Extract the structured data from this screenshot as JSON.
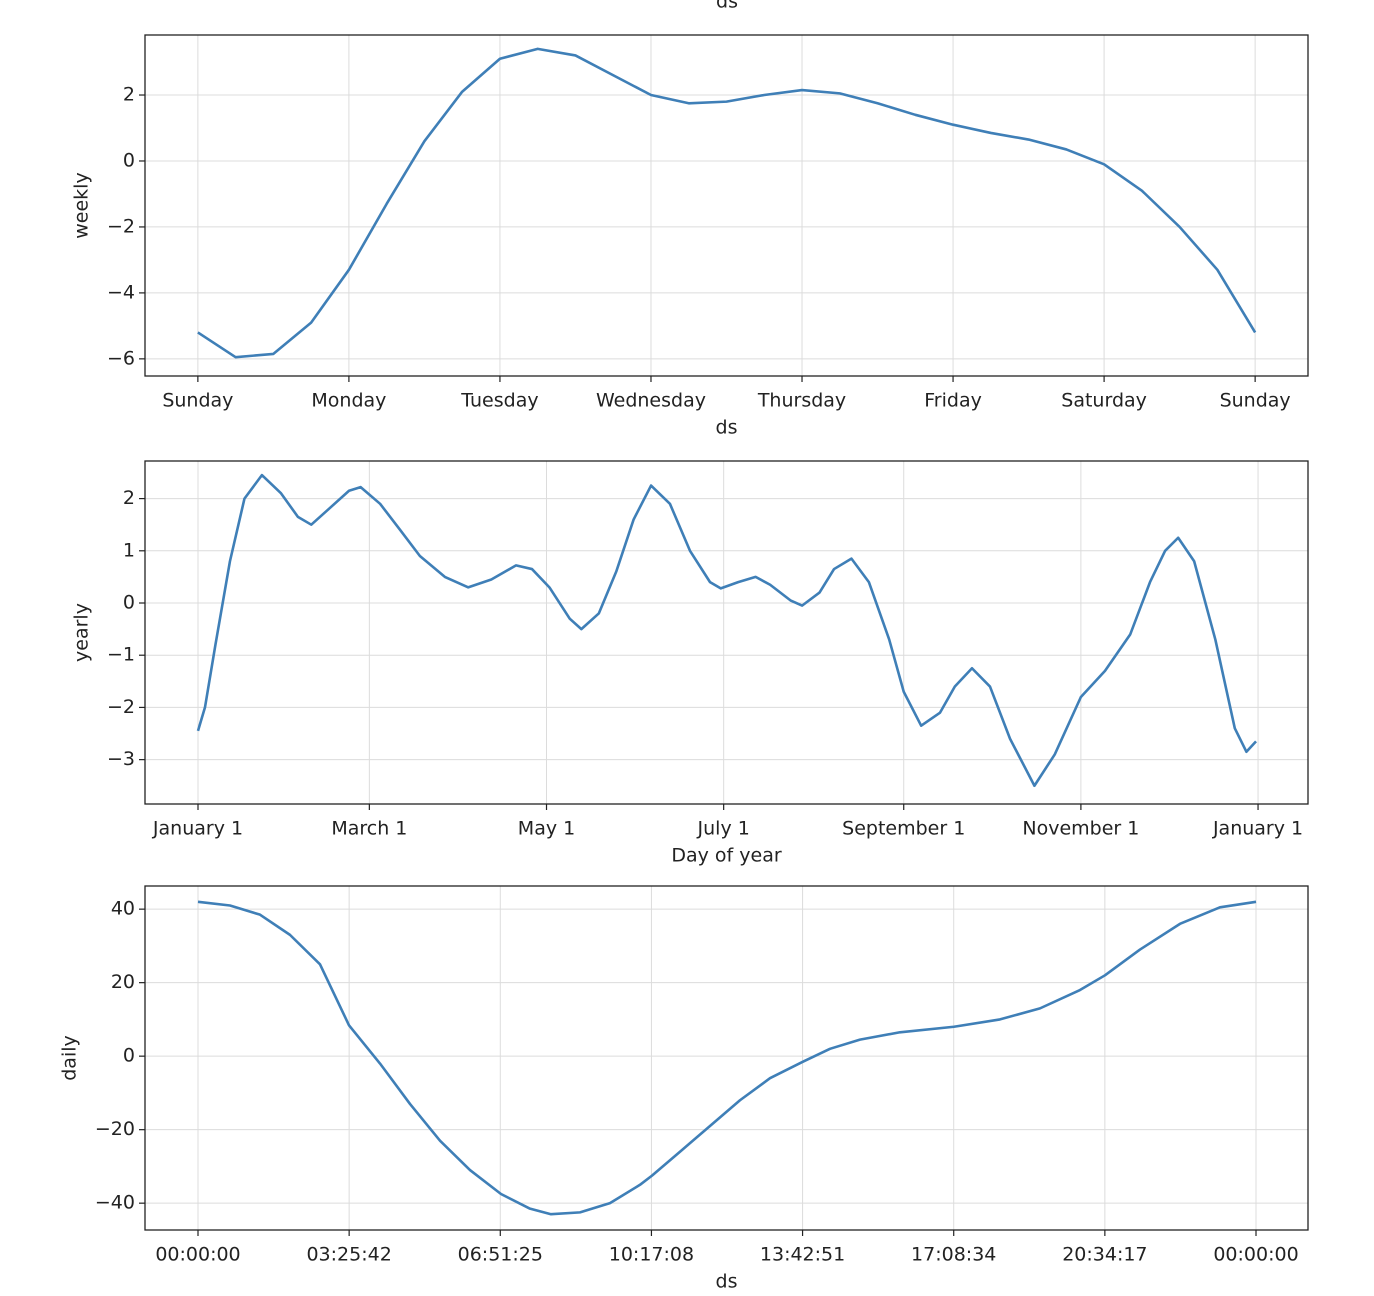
{
  "top_label": "ds",
  "chart_data": [
    {
      "type": "line",
      "ylabel": "weekly",
      "xlabel": "ds",
      "color": "#3f7fb7",
      "grid": true,
      "x": [
        0,
        0.25,
        0.5,
        0.75,
        1.0,
        1.25,
        1.5,
        1.75,
        2.0,
        2.25,
        2.5,
        2.75,
        3.0,
        3.25,
        3.5,
        3.75,
        4.0,
        4.25,
        4.5,
        4.75,
        5.0,
        5.25,
        5.5,
        5.75,
        6.0,
        6.25,
        6.5,
        6.75,
        7.0
      ],
      "values": [
        -5.2,
        -5.95,
        -5.85,
        -4.9,
        -3.3,
        -1.3,
        0.6,
        2.1,
        3.1,
        3.4,
        3.2,
        2.6,
        2.0,
        1.75,
        1.8,
        2.0,
        2.15,
        2.05,
        1.75,
        1.4,
        1.1,
        0.85,
        0.65,
        0.35,
        -0.1,
        -0.9,
        -2.0,
        -3.3,
        -5.2
      ],
      "xlim": [
        -0.35,
        7.35
      ],
      "ylim": [
        -6.52,
        3.82
      ],
      "xticks": [
        {
          "value": 0,
          "label": "Sunday"
        },
        {
          "value": 1,
          "label": "Monday"
        },
        {
          "value": 2,
          "label": "Tuesday"
        },
        {
          "value": 3,
          "label": "Wednesday"
        },
        {
          "value": 4,
          "label": "Thursday"
        },
        {
          "value": 5,
          "label": "Friday"
        },
        {
          "value": 6,
          "label": "Saturday"
        },
        {
          "value": 7,
          "label": "Sunday"
        }
      ],
      "yticks": [
        {
          "value": -6,
          "label": "−6"
        },
        {
          "value": -4,
          "label": "−4"
        },
        {
          "value": -2,
          "label": "−2"
        },
        0,
        2
      ]
    },
    {
      "type": "line",
      "ylabel": "yearly",
      "xlabel": "Day of year",
      "color": "#3f7fb7",
      "grid": true,
      "x": [
        0,
        2.4,
        6,
        11,
        16,
        22,
        28.6,
        34.4,
        39,
        45,
        52,
        56,
        62.7,
        69.6,
        76.4,
        85,
        93,
        101,
        109.5,
        115,
        121,
        128,
        132,
        138,
        144,
        150,
        156,
        162.5,
        169.4,
        176.3,
        180,
        186,
        192,
        197,
        204,
        208,
        214,
        219,
        225,
        231,
        238,
        243,
        249,
        255.5,
        260.6,
        266.5,
        272.7,
        279.6,
        288,
        295,
        304,
        312.3,
        321,
        327.8,
        333,
        337.5,
        343,
        350.3,
        357,
        361,
        364.3
      ],
      "values": [
        -2.45,
        -2.0,
        -0.8,
        0.8,
        2.0,
        2.45,
        2.1,
        1.65,
        1.5,
        1.8,
        2.15,
        2.22,
        1.9,
        1.4,
        0.9,
        0.5,
        0.3,
        0.45,
        0.72,
        0.65,
        0.3,
        -0.3,
        -0.5,
        -0.2,
        0.6,
        1.6,
        2.25,
        1.9,
        1.0,
        0.4,
        0.28,
        0.4,
        0.5,
        0.35,
        0.05,
        -0.05,
        0.2,
        0.65,
        0.85,
        0.4,
        -0.7,
        -1.7,
        -2.35,
        -2.1,
        -1.6,
        -1.25,
        -1.6,
        -2.6,
        -3.5,
        -2.9,
        -1.8,
        -1.3,
        -0.6,
        0.4,
        1.0,
        1.25,
        0.8,
        -0.7,
        -2.4,
        -2.85,
        -2.65
      ],
      "xlim": [
        -18.25,
        382.2
      ],
      "ylim": [
        -3.85,
        2.72
      ],
      "xticks": [
        {
          "value": 0,
          "label": "January 1"
        },
        {
          "value": 59,
          "label": "March 1"
        },
        {
          "value": 120,
          "label": "May 1"
        },
        {
          "value": 181,
          "label": "July 1"
        },
        {
          "value": 243,
          "label": "September 1"
        },
        {
          "value": 304,
          "label": "November 1"
        },
        {
          "value": 365,
          "label": "January 1"
        }
      ],
      "yticks": [
        {
          "value": -3,
          "label": "−3"
        },
        {
          "value": -2,
          "label": "−2"
        },
        {
          "value": -1,
          "label": "−1"
        },
        0,
        1,
        2
      ]
    },
    {
      "type": "line",
      "ylabel": "daily",
      "xlabel": "ds",
      "color": "#3f7fb7",
      "grid": true,
      "x": [
        0,
        2613,
        5063,
        7513,
        9963,
        12331,
        14862,
        17312,
        19762,
        22212,
        24743,
        27111,
        28826,
        31194,
        33644,
        36094,
        37074,
        39360,
        41810,
        44260,
        46710,
        49404,
        51610,
        54060,
        57325,
        61735,
        65491,
        68758,
        72024,
        74066,
        76924,
        80190,
        83457,
        86400
      ],
      "values": [
        42,
        41,
        38.5,
        33,
        25,
        8.4,
        -2,
        -13,
        -23,
        -31,
        -37.5,
        -41.5,
        -43,
        -42.5,
        -40,
        -35,
        -32.5,
        -26,
        -19,
        -12,
        -6,
        -1.5,
        2,
        4.5,
        6.5,
        8,
        10,
        13,
        18,
        22,
        29,
        36,
        40.5,
        42
      ],
      "xlim": [
        -4328,
        90646
      ],
      "ylim": [
        -47.3,
        46.3
      ],
      "xticks": [
        {
          "value": 0,
          "label": "00:00:00"
        },
        {
          "value": 12343,
          "label": "03:25:42"
        },
        {
          "value": 24686,
          "label": "06:51:25"
        },
        {
          "value": 37029,
          "label": "10:17:08"
        },
        {
          "value": 49371,
          "label": "13:42:51"
        },
        {
          "value": 61714,
          "label": "17:08:34"
        },
        {
          "value": 74057,
          "label": "20:34:17"
        },
        {
          "value": 86400,
          "label": "00:00:00"
        }
      ],
      "yticks": [
        {
          "value": -40,
          "label": "−40"
        },
        {
          "value": -20,
          "label": "−20"
        },
        0,
        20,
        40
      ]
    }
  ]
}
